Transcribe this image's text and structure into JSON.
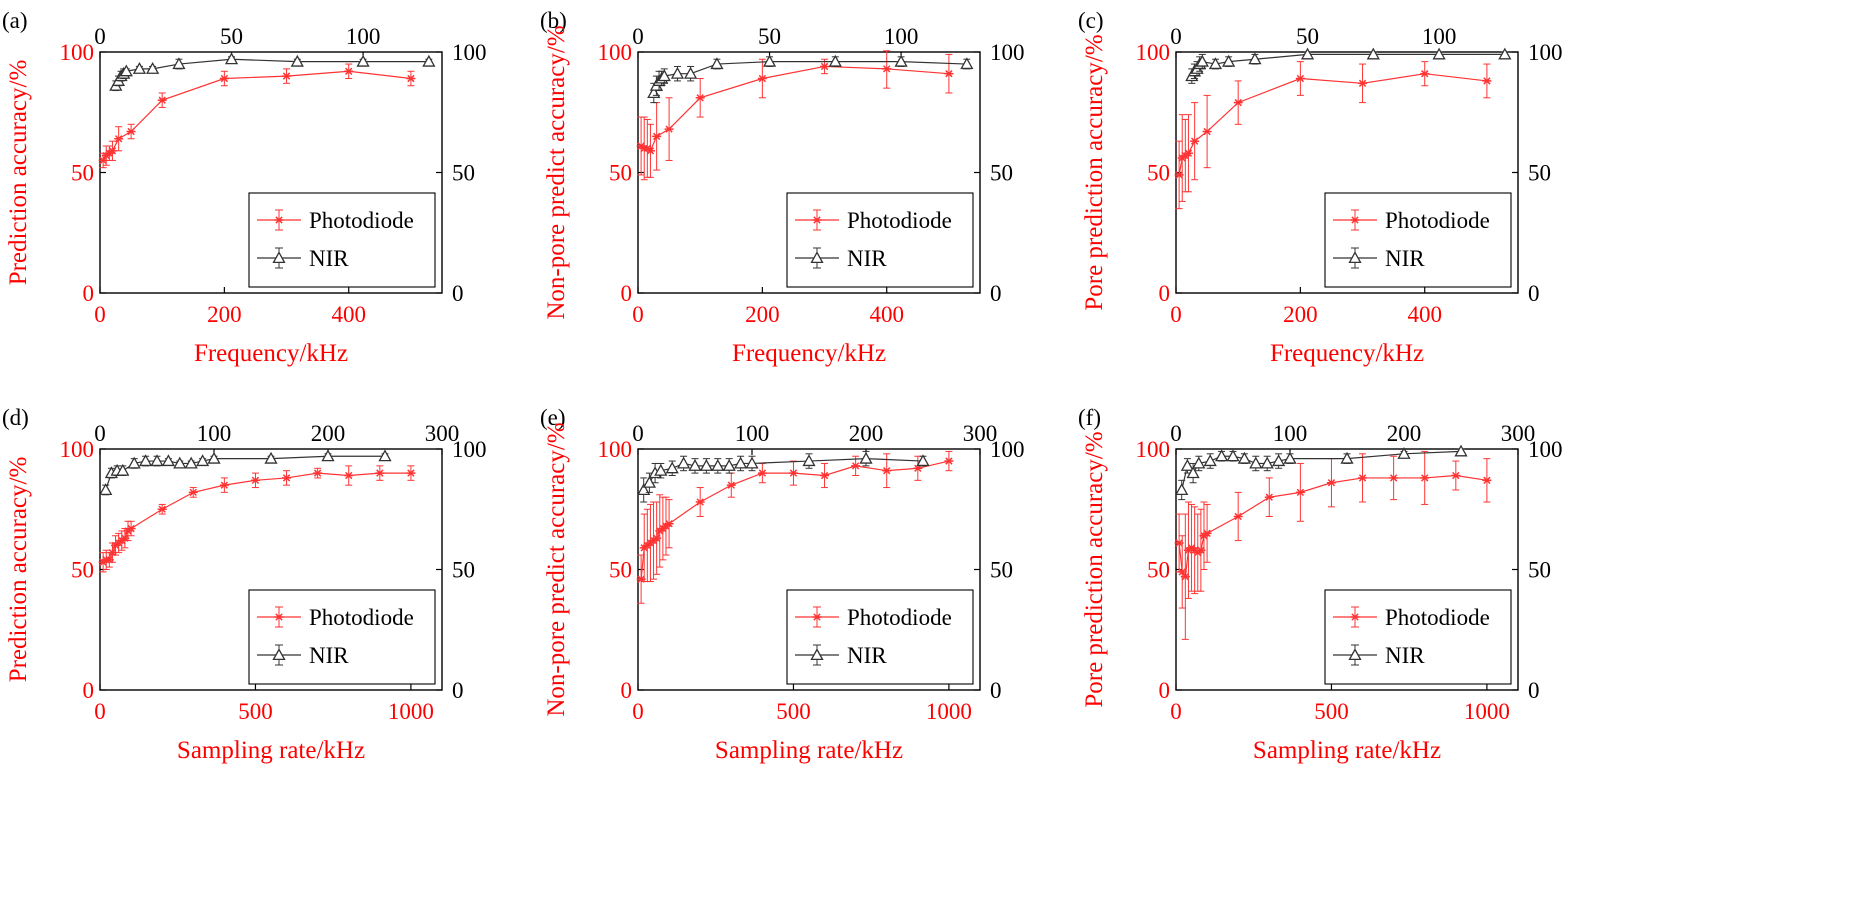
{
  "colors": {
    "photodiode": "#ff3333",
    "nir": "#333333",
    "left_axis": "#ff0000",
    "right_axis": "#000000"
  },
  "chart_data": [
    {
      "type": "line",
      "panel_label": "(a)",
      "xlabel": "Frequency/kHz",
      "ylabel": "Prediction accuracy/%",
      "bottom_xlim": [
        0,
        550
      ],
      "bottom_xticks": [
        0,
        200,
        400
      ],
      "top_xlim": [
        0,
        130
      ],
      "top_xticks": [
        0,
        50,
        100
      ],
      "ylim": [
        0,
        100
      ],
      "yticks": [
        0,
        50,
        100
      ],
      "legend_position": "lower-right",
      "series": [
        {
          "name": "Photodiode",
          "axis": "bottom",
          "x": [
            5,
            10,
            15,
            20,
            30,
            50,
            100,
            200,
            300,
            400,
            500
          ],
          "y": [
            55,
            57,
            58,
            59,
            64,
            67,
            80,
            89,
            90,
            92,
            89
          ],
          "err": [
            3,
            4,
            3,
            4,
            5,
            3,
            3,
            3,
            3,
            3,
            3
          ]
        },
        {
          "name": "NIR",
          "axis": "top",
          "x": [
            6,
            7,
            8,
            9,
            10,
            15,
            20,
            30,
            50,
            75,
            100,
            125
          ],
          "y": [
            86,
            88,
            90,
            91,
            92,
            93,
            93,
            95,
            97,
            96,
            96,
            96
          ],
          "err": [
            2,
            2,
            2,
            2,
            1,
            1,
            1,
            2,
            1,
            1,
            1,
            1
          ]
        }
      ]
    },
    {
      "type": "line",
      "panel_label": "(b)",
      "xlabel": "Frequency/kHz",
      "ylabel": "Non-pore predict accuracy/%",
      "bottom_xlim": [
        0,
        550
      ],
      "bottom_xticks": [
        0,
        200,
        400
      ],
      "top_xlim": [
        0,
        130
      ],
      "top_xticks": [
        0,
        50,
        100
      ],
      "ylim": [
        0,
        100
      ],
      "yticks": [
        0,
        50,
        100
      ],
      "legend_position": "lower-right",
      "series": [
        {
          "name": "Photodiode",
          "axis": "bottom",
          "x": [
            5,
            10,
            15,
            20,
            30,
            50,
            100,
            200,
            300,
            400,
            500
          ],
          "y": [
            61,
            60,
            60,
            59,
            65,
            68,
            81,
            89,
            94,
            93,
            91
          ],
          "err": [
            12,
            13,
            12,
            11,
            14,
            13,
            8,
            8,
            3,
            8,
            8
          ]
        },
        {
          "name": "NIR",
          "axis": "top",
          "x": [
            6,
            7,
            8,
            9,
            10,
            15,
            20,
            30,
            50,
            75,
            100,
            125
          ],
          "y": [
            83,
            86,
            88,
            89,
            90,
            91,
            91,
            95,
            96,
            96,
            96,
            95
          ],
          "err": [
            4,
            4,
            4,
            3,
            3,
            3,
            3,
            2,
            2,
            2,
            2,
            2
          ]
        }
      ]
    },
    {
      "type": "line",
      "panel_label": "(c)",
      "xlabel": "Frequency/kHz",
      "ylabel": "Pore prediction accuracy/%",
      "bottom_xlim": [
        0,
        550
      ],
      "bottom_xticks": [
        0,
        200,
        400
      ],
      "top_xlim": [
        0,
        130
      ],
      "top_xticks": [
        0,
        50,
        100
      ],
      "ylim": [
        0,
        100
      ],
      "yticks": [
        0,
        50,
        100
      ],
      "legend_position": "lower-right",
      "series": [
        {
          "name": "Photodiode",
          "axis": "bottom",
          "x": [
            5,
            10,
            15,
            20,
            30,
            50,
            100,
            200,
            300,
            400,
            500
          ],
          "y": [
            49,
            56,
            57,
            58,
            63,
            67,
            79,
            89,
            87,
            91,
            88
          ],
          "err": [
            14,
            18,
            15,
            16,
            16,
            15,
            9,
            7,
            8,
            5,
            7
          ]
        },
        {
          "name": "NIR",
          "axis": "top",
          "x": [
            6,
            7,
            8,
            9,
            10,
            15,
            20,
            30,
            50,
            75,
            100,
            125
          ],
          "y": [
            90,
            92,
            93,
            95,
            96,
            95,
            96,
            97,
            99,
            99,
            99,
            99
          ],
          "err": [
            3,
            3,
            3,
            3,
            3,
            2,
            2,
            2,
            1,
            1,
            1,
            1
          ]
        }
      ]
    },
    {
      "type": "line",
      "panel_label": "(d)",
      "xlabel": "Sampling rate/kHz",
      "ylabel": "Prediction accuracy/%",
      "bottom_xlim": [
        0,
        1100
      ],
      "bottom_xticks": [
        0,
        500,
        1000
      ],
      "top_xlim": [
        0,
        300
      ],
      "top_xticks": [
        0,
        100,
        200,
        300
      ],
      "ylim": [
        0,
        100
      ],
      "yticks": [
        0,
        50,
        100
      ],
      "legend_position": "lower-right",
      "series": [
        {
          "name": "Photodiode",
          "axis": "bottom",
          "x": [
            10,
            20,
            30,
            40,
            50,
            60,
            70,
            80,
            90,
            100,
            200,
            300,
            400,
            500,
            600,
            700,
            800,
            900,
            1000
          ],
          "y": [
            53,
            54,
            54,
            57,
            60,
            61,
            62,
            63,
            66,
            67,
            75,
            82,
            85,
            87,
            88,
            90,
            89,
            90,
            90
          ],
          "err": [
            4,
            4,
            3,
            4,
            4,
            4,
            4,
            4,
            4,
            3,
            2,
            2,
            3,
            3,
            3,
            2,
            4,
            3,
            3
          ]
        },
        {
          "name": "NIR",
          "axis": "top",
          "x": [
            5,
            10,
            15,
            20,
            30,
            40,
            50,
            60,
            70,
            80,
            90,
            100,
            150,
            200,
            250
          ],
          "y": [
            83,
            90,
            91,
            91,
            94,
            95,
            95,
            95,
            94,
            94,
            95,
            96,
            96,
            97,
            97
          ],
          "err": [
            2,
            2,
            2,
            2,
            2,
            2,
            2,
            1,
            1,
            1,
            1,
            1,
            1,
            1,
            1
          ]
        }
      ]
    },
    {
      "type": "line",
      "panel_label": "(e)",
      "xlabel": "Sampling rate/kHz",
      "ylabel": "Non-pore predict accuracy/%",
      "bottom_xlim": [
        0,
        1100
      ],
      "bottom_xticks": [
        0,
        500,
        1000
      ],
      "top_xlim": [
        0,
        300
      ],
      "top_xticks": [
        0,
        100,
        200,
        300
      ],
      "ylim": [
        0,
        100
      ],
      "yticks": [
        0,
        50,
        100
      ],
      "legend_position": "lower-right",
      "series": [
        {
          "name": "Photodiode",
          "axis": "bottom",
          "x": [
            10,
            20,
            30,
            40,
            50,
            60,
            70,
            80,
            90,
            100,
            200,
            300,
            400,
            500,
            600,
            700,
            800,
            900,
            1000
          ],
          "y": [
            46,
            59,
            60,
            61,
            62,
            63,
            66,
            67,
            68,
            69,
            78,
            85,
            90,
            90,
            89,
            93,
            91,
            92,
            95
          ],
          "err": [
            10,
            14,
            15,
            16,
            16,
            15,
            15,
            13,
            12,
            10,
            6,
            5,
            4,
            5,
            5,
            4,
            7,
            5,
            4
          ]
        },
        {
          "name": "NIR",
          "axis": "top",
          "x": [
            5,
            10,
            15,
            20,
            30,
            40,
            50,
            60,
            70,
            80,
            90,
            100,
            150,
            200,
            250
          ],
          "y": [
            83,
            86,
            90,
            91,
            92,
            94,
            93,
            93,
            93,
            93,
            94,
            94,
            95,
            96,
            95
          ],
          "err": [
            5,
            4,
            4,
            3,
            3,
            3,
            3,
            3,
            3,
            3,
            3,
            3,
            3,
            3,
            2
          ]
        }
      ]
    },
    {
      "type": "line",
      "panel_label": "(f)",
      "xlabel": "Sampling rate/kHz",
      "ylabel": "Pore prediction accuracy/%",
      "bottom_xlim": [
        0,
        1100
      ],
      "bottom_xticks": [
        0,
        500,
        1000
      ],
      "top_xlim": [
        0,
        300
      ],
      "top_xticks": [
        0,
        100,
        200,
        300
      ],
      "ylim": [
        0,
        100
      ],
      "yticks": [
        0,
        50,
        100
      ],
      "legend_position": "lower-right",
      "series": [
        {
          "name": "Photodiode",
          "axis": "bottom",
          "x": [
            10,
            20,
            30,
            40,
            50,
            60,
            70,
            80,
            90,
            100,
            200,
            300,
            400,
            500,
            600,
            700,
            800,
            900,
            1000
          ],
          "y": [
            61,
            49,
            47,
            58,
            59,
            58,
            57,
            58,
            64,
            65,
            72,
            80,
            82,
            86,
            88,
            88,
            88,
            89,
            87
          ],
          "err": [
            12,
            15,
            26,
            20,
            18,
            18,
            16,
            17,
            14,
            12,
            10,
            8,
            12,
            10,
            10,
            9,
            11,
            6,
            9
          ]
        },
        {
          "name": "NIR",
          "axis": "top",
          "x": [
            5,
            10,
            15,
            20,
            30,
            40,
            50,
            60,
            70,
            80,
            90,
            100,
            150,
            200,
            250
          ],
          "y": [
            83,
            93,
            90,
            94,
            95,
            97,
            97,
            96,
            94,
            94,
            95,
            96,
            96,
            98,
            99
          ],
          "err": [
            4,
            3,
            4,
            3,
            3,
            2,
            2,
            2,
            3,
            3,
            3,
            2,
            2,
            1,
            1
          ]
        }
      ]
    }
  ]
}
